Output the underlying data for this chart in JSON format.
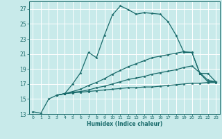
{
  "title": "",
  "xlabel": "Humidex (Indice chaleur)",
  "bg_color": "#c8eaea",
  "grid_color": "#a8d8d8",
  "line_color": "#1a6b6b",
  "xlim": [
    -0.5,
    23.5
  ],
  "ylim": [
    13,
    28
  ],
  "yticks": [
    13,
    15,
    17,
    19,
    21,
    23,
    25,
    27
  ],
  "xticks": [
    0,
    1,
    2,
    3,
    4,
    5,
    6,
    7,
    8,
    9,
    10,
    11,
    12,
    13,
    14,
    15,
    16,
    17,
    18,
    19,
    20,
    21,
    22,
    23
  ],
  "line1_x": [
    0,
    1,
    2,
    3,
    4,
    5,
    6,
    7,
    8,
    9,
    10,
    11,
    12,
    13,
    14,
    15,
    16,
    17,
    18,
    19,
    20,
    21,
    22,
    23
  ],
  "line1_y": [
    13.3,
    13.1,
    15.0,
    15.5,
    15.7,
    17.0,
    18.5,
    21.2,
    20.5,
    23.5,
    26.2,
    27.4,
    26.9,
    26.3,
    26.5,
    26.4,
    26.3,
    25.3,
    23.5,
    21.2,
    21.2,
    18.4,
    17.3,
    17.3
  ],
  "line2_x": [
    3,
    4,
    5,
    6,
    7,
    8,
    9,
    10,
    11,
    12,
    13,
    14,
    15,
    16,
    17,
    18,
    19,
    20,
    21,
    22,
    23
  ],
  "line2_y": [
    15.5,
    15.7,
    15.8,
    15.9,
    16.0,
    16.1,
    16.2,
    16.3,
    16.4,
    16.5,
    16.5,
    16.6,
    16.6,
    16.7,
    16.8,
    16.9,
    17.0,
    17.1,
    17.1,
    17.2,
    17.2
  ],
  "line3_x": [
    3,
    4,
    5,
    6,
    7,
    8,
    9,
    10,
    11,
    12,
    13,
    14,
    15,
    16,
    17,
    18,
    19,
    20,
    21,
    22,
    23
  ],
  "line3_y": [
    15.5,
    15.7,
    15.9,
    16.0,
    16.2,
    16.5,
    16.7,
    17.0,
    17.3,
    17.6,
    17.8,
    18.0,
    18.3,
    18.5,
    18.7,
    18.9,
    19.2,
    19.4,
    18.5,
    17.5,
    17.3
  ],
  "line4_x": [
    3,
    4,
    5,
    6,
    7,
    8,
    9,
    10,
    11,
    12,
    13,
    14,
    15,
    16,
    17,
    18,
    19,
    20,
    21,
    22,
    23
  ],
  "line4_y": [
    15.5,
    15.7,
    16.0,
    16.3,
    16.8,
    17.2,
    17.7,
    18.3,
    18.8,
    19.3,
    19.7,
    20.1,
    20.5,
    20.7,
    20.9,
    21.1,
    21.3,
    21.2,
    18.4,
    18.4,
    17.3
  ]
}
